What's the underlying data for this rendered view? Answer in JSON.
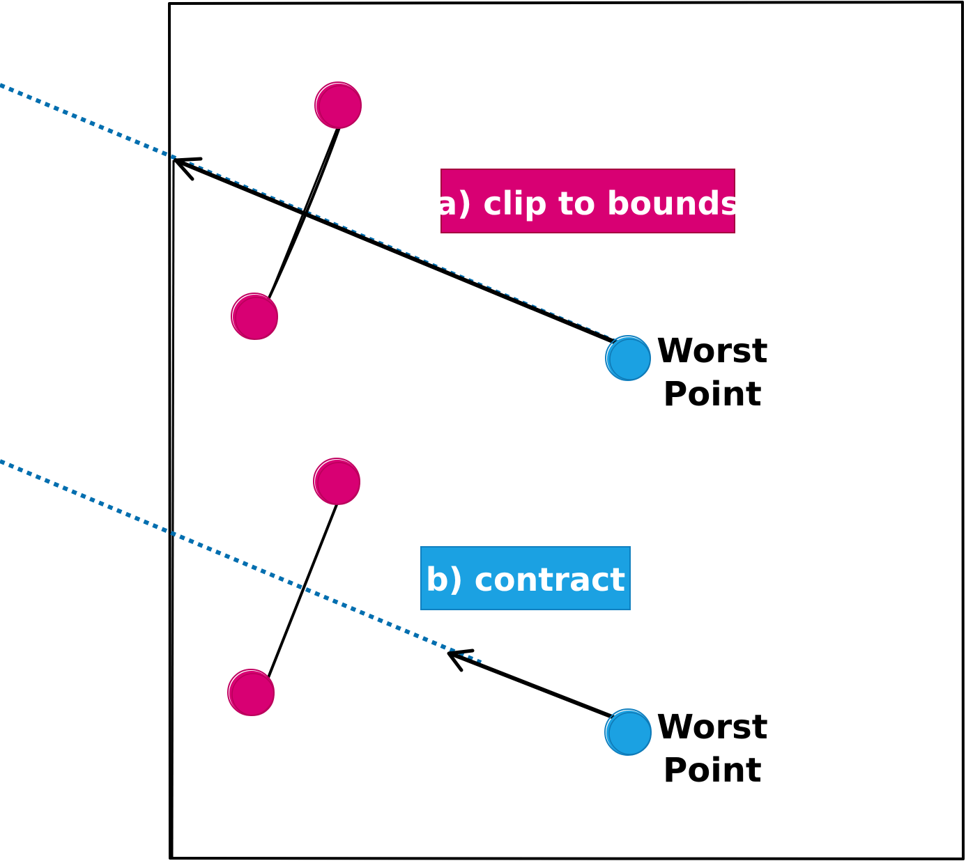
{
  "colors": {
    "simplex_point": "#d80073",
    "worst_point": "#1ba1e2",
    "dotted_line": "#006eaf",
    "arrow": "#000000",
    "boundary": "#000000",
    "label_a_fill": "#d80073",
    "label_b_fill": "#1ba1e2"
  },
  "panel_a": {
    "label": "a) clip to bounds",
    "worst_label_line1": "Worst",
    "worst_label_line2": "Point"
  },
  "panel_b": {
    "label": "b) contract",
    "worst_label_line1": "Worst",
    "worst_label_line2": "Point"
  }
}
